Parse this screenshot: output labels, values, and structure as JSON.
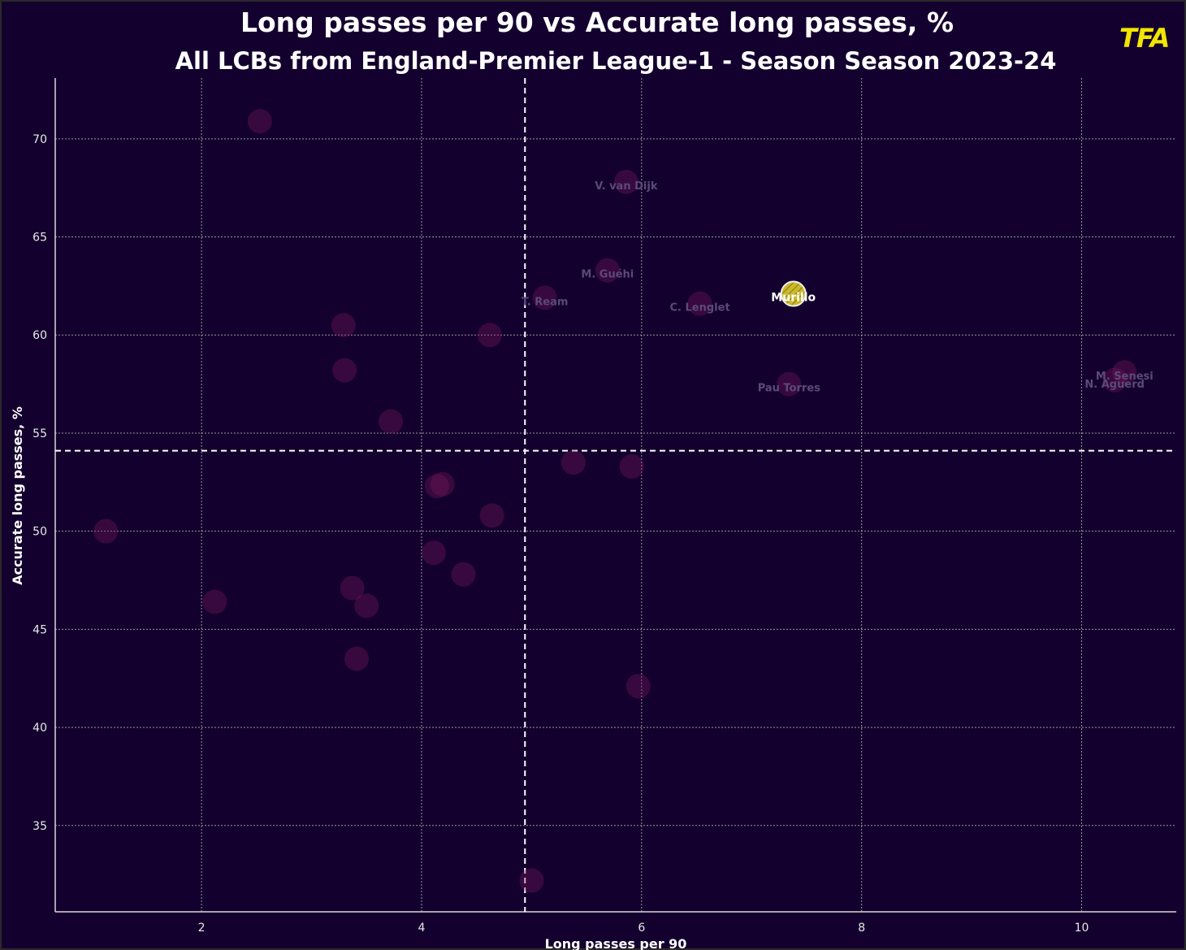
{
  "header": {
    "title": "Long passes per 90 vs Accurate long passes, %",
    "subtitle": "All LCBs from England-Premier League-1 - Season Season 2023-24",
    "logo_text": "TFA"
  },
  "colors": {
    "background": "#14002e",
    "point": "#7a1a5c",
    "highlight": "#cbb82c",
    "grid": "#bcbcbc",
    "logo": "#f2e600"
  },
  "chart_data": {
    "type": "scatter",
    "xlabel": "Long passes per 90",
    "ylabel": "Accurate long passes, %",
    "xlim": [
      0.67,
      10.86
    ],
    "ylim": [
      30.6,
      73.1
    ],
    "xticks": [
      2,
      4,
      6,
      8,
      10
    ],
    "yticks": [
      35,
      40,
      45,
      50,
      55,
      60,
      65,
      70
    ],
    "grid": true,
    "reference_lines": {
      "x": 4.94,
      "y": 54.1
    },
    "highlight_player": "Murillo",
    "points": [
      {
        "x": 2.53,
        "y": 70.9,
        "label": ""
      },
      {
        "x": 5.86,
        "y": 67.8,
        "label": "V. van Dijk"
      },
      {
        "x": 5.69,
        "y": 63.3,
        "label": "M. Guéhi"
      },
      {
        "x": 5.12,
        "y": 61.9,
        "label": "T. Ream"
      },
      {
        "x": 6.53,
        "y": 61.6,
        "label": "C. Lenglet"
      },
      {
        "x": 7.38,
        "y": 62.1,
        "label": "Murillo",
        "highlight": true
      },
      {
        "x": 3.29,
        "y": 60.5,
        "label": ""
      },
      {
        "x": 4.62,
        "y": 60.0,
        "label": ""
      },
      {
        "x": 3.3,
        "y": 58.2,
        "label": ""
      },
      {
        "x": 7.34,
        "y": 57.5,
        "label": "Pau Torres"
      },
      {
        "x": 10.39,
        "y": 58.1,
        "label": "M. Senesi"
      },
      {
        "x": 10.3,
        "y": 57.7,
        "label": "N. Aguerd"
      },
      {
        "x": 3.72,
        "y": 55.6,
        "label": ""
      },
      {
        "x": 5.38,
        "y": 53.5,
        "label": ""
      },
      {
        "x": 5.91,
        "y": 53.3,
        "label": ""
      },
      {
        "x": 4.14,
        "y": 52.3,
        "label": ""
      },
      {
        "x": 4.19,
        "y": 52.4,
        "label": ""
      },
      {
        "x": 4.64,
        "y": 50.8,
        "label": ""
      },
      {
        "x": 1.13,
        "y": 50.0,
        "label": ""
      },
      {
        "x": 4.11,
        "y": 48.9,
        "label": ""
      },
      {
        "x": 4.38,
        "y": 47.8,
        "label": ""
      },
      {
        "x": 3.37,
        "y": 47.1,
        "label": ""
      },
      {
        "x": 3.5,
        "y": 46.2,
        "label": ""
      },
      {
        "x": 2.12,
        "y": 46.4,
        "label": ""
      },
      {
        "x": 3.41,
        "y": 43.5,
        "label": ""
      },
      {
        "x": 5.97,
        "y": 42.1,
        "label": ""
      },
      {
        "x": 5.0,
        "y": 32.2,
        "label": ""
      }
    ]
  }
}
